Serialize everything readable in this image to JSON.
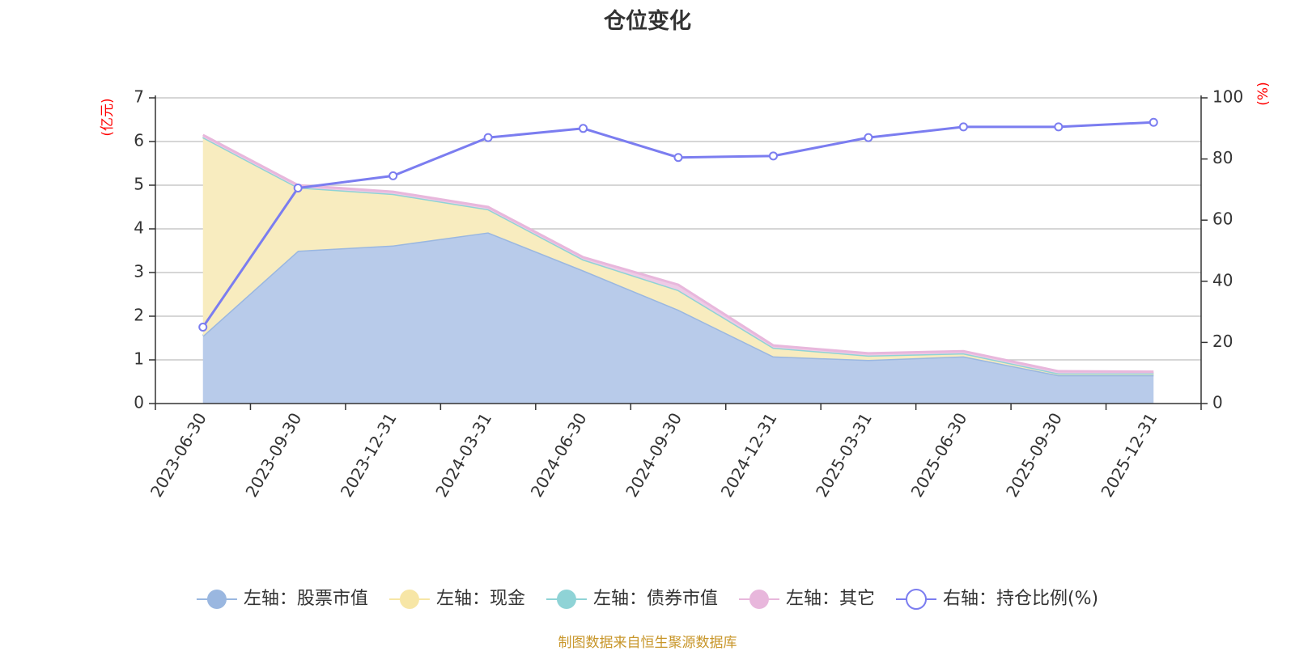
{
  "title": "仓位变化",
  "source_note": "制图数据来自恒生聚源数据库",
  "chart_data": {
    "type": "area",
    "categories": [
      "2023-06-30",
      "2023-09-30",
      "2023-12-31",
      "2024-03-31",
      "2024-06-30",
      "2024-09-30",
      "2024-12-31",
      "2025-03-31",
      "2025-06-30",
      "2025-09-30",
      "2025-12-31"
    ],
    "left_axis": {
      "unit": "(亿元)",
      "ylim": [
        0,
        7
      ],
      "ticks": [
        "0",
        "1",
        "2",
        "3",
        "4",
        "5",
        "6",
        "7"
      ]
    },
    "right_axis": {
      "unit": "(%)",
      "ylim": [
        0,
        100
      ],
      "ticks": [
        "0",
        "20",
        "40",
        "60",
        "80",
        "100"
      ]
    },
    "grid": true,
    "legend_position": "bottom",
    "series": [
      {
        "name": "左轴：股票市值",
        "axis": "left",
        "stack": "total",
        "type": "area",
        "color": "#9ab7e0",
        "fill": "#b8cbea",
        "values": [
          1.55,
          3.5,
          3.62,
          3.92,
          3.05,
          2.15,
          1.08,
          1.0,
          1.08,
          0.65,
          0.65
        ]
      },
      {
        "name": "左轴：现金",
        "axis": "left",
        "stack": "total",
        "type": "area",
        "color": "#f7e6a6",
        "fill": "#f8ecbf",
        "values": [
          4.55,
          1.45,
          1.18,
          0.53,
          0.25,
          0.45,
          0.2,
          0.1,
          0.07,
          0.04,
          0.04
        ]
      },
      {
        "name": "左轴：债券市值",
        "axis": "left",
        "stack": "total",
        "type": "area",
        "color": "#8fd3d6",
        "fill": "#b0e0e2",
        "values": [
          0,
          0,
          0,
          0,
          0,
          0,
          0,
          0,
          0,
          0,
          0
        ]
      },
      {
        "name": "左轴：其它",
        "axis": "left",
        "stack": "total",
        "type": "area",
        "color": "#e8b7dc",
        "fill": "#eecbe6",
        "values": [
          0.05,
          0.05,
          0.05,
          0.05,
          0.05,
          0.12,
          0.05,
          0.05,
          0.05,
          0.05,
          0.04
        ]
      },
      {
        "name": "右轴：持仓比例(%)",
        "axis": "right",
        "type": "line",
        "color": "#7b7df0",
        "values": [
          25,
          70.5,
          74.5,
          87,
          90,
          80.5,
          81,
          87,
          90.5,
          90.5,
          92
        ]
      }
    ]
  }
}
